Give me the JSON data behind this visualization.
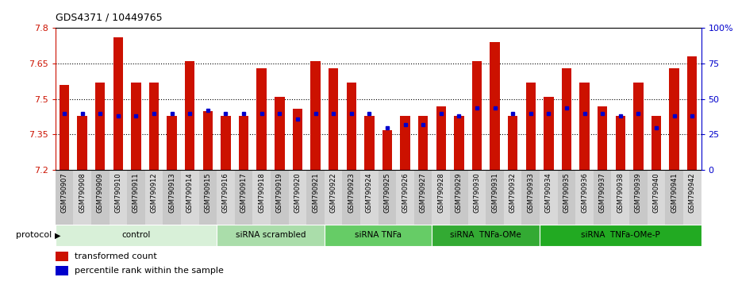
{
  "title": "GDS4371 / 10449765",
  "samples": [
    "GSM790907",
    "GSM790908",
    "GSM790909",
    "GSM790910",
    "GSM790911",
    "GSM790912",
    "GSM790913",
    "GSM790914",
    "GSM790915",
    "GSM790916",
    "GSM790917",
    "GSM790918",
    "GSM790919",
    "GSM790920",
    "GSM790921",
    "GSM790922",
    "GSM790923",
    "GSM790924",
    "GSM790925",
    "GSM790926",
    "GSM790927",
    "GSM790928",
    "GSM790929",
    "GSM790930",
    "GSM790931",
    "GSM790932",
    "GSM790933",
    "GSM790934",
    "GSM790935",
    "GSM790936",
    "GSM790937",
    "GSM790938",
    "GSM790939",
    "GSM790940",
    "GSM790941",
    "GSM790942"
  ],
  "red_values": [
    7.56,
    7.43,
    7.57,
    7.76,
    7.57,
    7.57,
    7.43,
    7.66,
    7.45,
    7.43,
    7.43,
    7.63,
    7.51,
    7.46,
    7.66,
    7.63,
    7.57,
    7.43,
    7.37,
    7.43,
    7.43,
    7.47,
    7.43,
    7.66,
    7.74,
    7.43,
    7.57,
    7.51,
    7.63,
    7.57,
    7.47,
    7.43,
    7.57,
    7.43,
    7.63,
    7.68
  ],
  "blue_percentiles": [
    40,
    40,
    40,
    38,
    38,
    40,
    40,
    40,
    42,
    40,
    40,
    40,
    40,
    36,
    40,
    40,
    40,
    40,
    30,
    32,
    32,
    40,
    38,
    44,
    44,
    40,
    40,
    40,
    44,
    40,
    40,
    38,
    40,
    30,
    38,
    38
  ],
  "ymin": 7.2,
  "ymax": 7.8,
  "yticks_left": [
    7.2,
    7.35,
    7.5,
    7.65,
    7.8
  ],
  "ytick_labels_left": [
    "7.2",
    "7.35",
    "7.5",
    "7.65",
    "7.8"
  ],
  "right_yticks": [
    0,
    25,
    50,
    75,
    100
  ],
  "right_ytick_labels": [
    "0",
    "25",
    "50",
    "75",
    "100%"
  ],
  "bar_color": "#cc1100",
  "dot_color": "#0000cc",
  "groups": [
    {
      "label": "control",
      "start": 0,
      "end": 9,
      "color": "#d8f0d8"
    },
    {
      "label": "siRNA scrambled",
      "start": 9,
      "end": 15,
      "color": "#aaddaa"
    },
    {
      "label": "siRNA TNFa",
      "start": 15,
      "end": 21,
      "color": "#66cc66"
    },
    {
      "label": "siRNA  TNFa-OMe",
      "start": 21,
      "end": 27,
      "color": "#33aa33"
    },
    {
      "label": "siRNA  TNFa-OMe-P",
      "start": 27,
      "end": 36,
      "color": "#22aa22"
    }
  ],
  "left_axis_color": "#cc1100",
  "right_axis_color": "#0000cc",
  "tick_bg_even": "#c8c8c8",
  "tick_bg_odd": "#d8d8d8",
  "plot_area_bg": "#ffffff",
  "fig_bg": "#ffffff"
}
